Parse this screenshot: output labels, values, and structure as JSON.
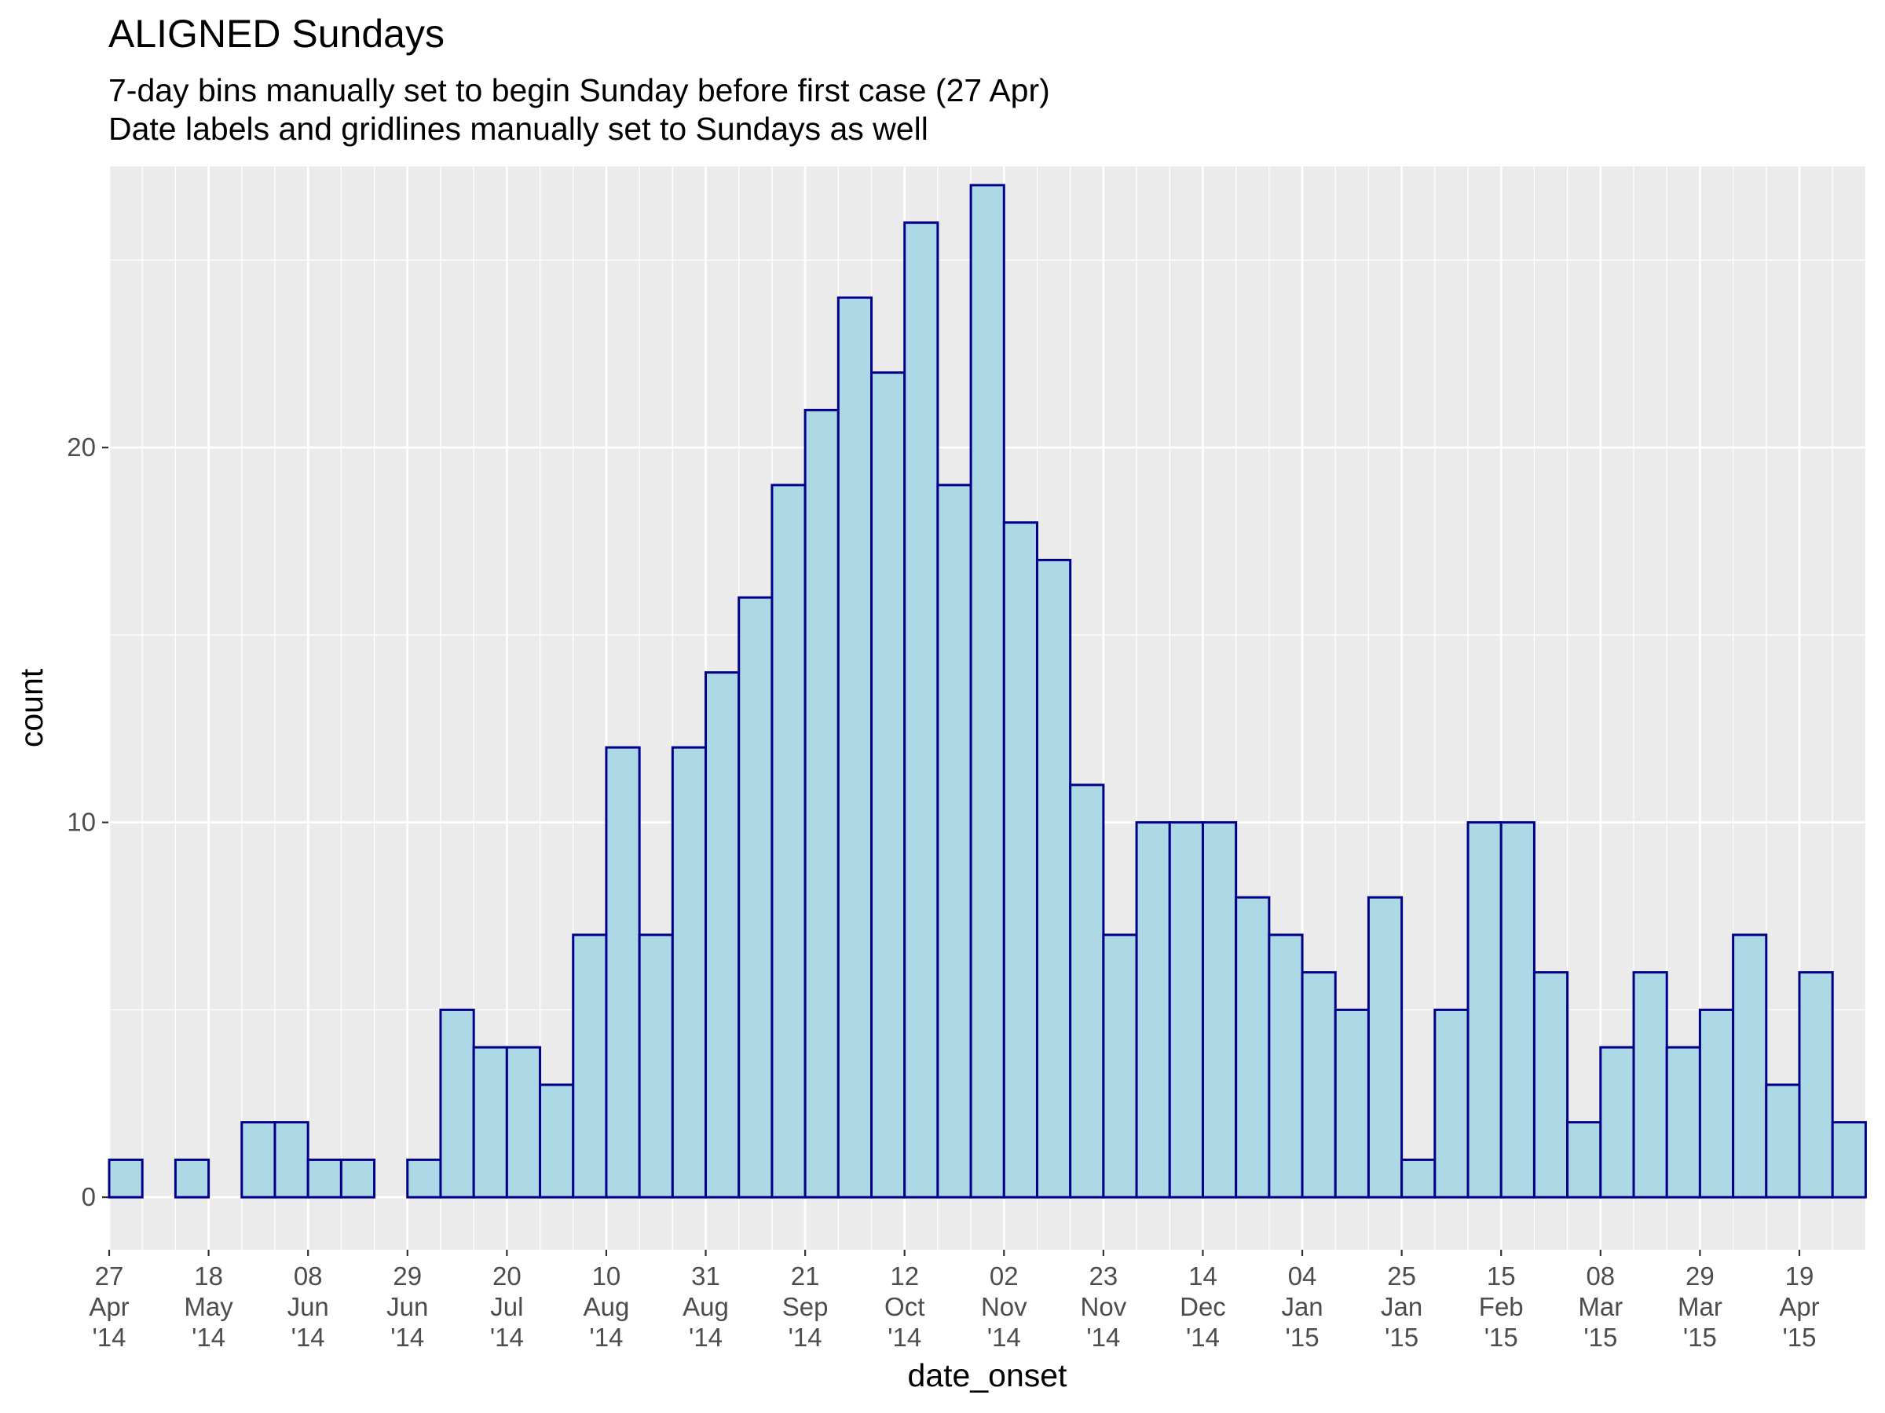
{
  "chart_data": {
    "type": "bar",
    "title": "ALIGNED Sundays",
    "subtitle_lines": [
      "7-day bins manually set to begin Sunday before first case (27 Apr)",
      "Date labels and gridlines manually set to Sundays as well"
    ],
    "xlabel": "date_onset",
    "ylabel": "count",
    "bin_width_days": 7,
    "bins_start": "2014-04-27",
    "values": [
      1,
      0,
      1,
      0,
      2,
      2,
      1,
      1,
      0,
      1,
      5,
      4,
      4,
      3,
      7,
      12,
      7,
      12,
      14,
      16,
      19,
      21,
      24,
      22,
      26,
      19,
      27,
      18,
      17,
      11,
      7,
      10,
      10,
      10,
      8,
      7,
      6,
      5,
      8,
      1,
      5,
      10,
      10,
      6,
      2,
      4,
      6,
      4,
      5,
      7,
      3,
      6,
      2
    ],
    "ylim": [
      -1.4,
      27.5
    ],
    "y_ticks": [
      0,
      10,
      20
    ],
    "x_ticks": [
      {
        "date": "2014-04-27",
        "label": [
          "27",
          "Apr",
          "'14"
        ]
      },
      {
        "date": "2014-05-18",
        "label": [
          "18",
          "May",
          "'14"
        ]
      },
      {
        "date": "2014-06-08",
        "label": [
          "08",
          "Jun",
          "'14"
        ]
      },
      {
        "date": "2014-06-29",
        "label": [
          "29",
          "Jun",
          "'14"
        ]
      },
      {
        "date": "2014-07-20",
        "label": [
          "20",
          "Jul",
          "'14"
        ]
      },
      {
        "date": "2014-08-10",
        "label": [
          "10",
          "Aug",
          "'14"
        ]
      },
      {
        "date": "2014-08-31",
        "label": [
          "31",
          "Aug",
          "'14"
        ]
      },
      {
        "date": "2014-09-21",
        "label": [
          "21",
          "Sep",
          "'14"
        ]
      },
      {
        "date": "2014-10-12",
        "label": [
          "12",
          "Oct",
          "'14"
        ]
      },
      {
        "date": "2014-11-02",
        "label": [
          "02",
          "Nov",
          "'14"
        ]
      },
      {
        "date": "2014-11-23",
        "label": [
          "23",
          "Nov",
          "'14"
        ]
      },
      {
        "date": "2014-12-14",
        "label": [
          "14",
          "Dec",
          "'14"
        ]
      },
      {
        "date": "2015-01-04",
        "label": [
          "04",
          "Jan",
          "'15"
        ]
      },
      {
        "date": "2015-01-25",
        "label": [
          "25",
          "Jan",
          "'15"
        ]
      },
      {
        "date": "2015-02-15",
        "label": [
          "15",
          "Feb",
          "'15"
        ]
      },
      {
        "date": "2015-03-08",
        "label": [
          "08",
          "Mar",
          "'15"
        ]
      },
      {
        "date": "2015-03-29",
        "label": [
          "29",
          "Mar",
          "'15"
        ]
      },
      {
        "date": "2015-04-19",
        "label": [
          "19",
          "Apr",
          "'15"
        ]
      }
    ],
    "grid": true,
    "colors": {
      "panel_background": "#ebebeb",
      "grid_major": "#ffffff",
      "bar_fill": "#add8e6",
      "bar_outline": "#00008b",
      "tick_text": "#4d4d4d"
    }
  }
}
